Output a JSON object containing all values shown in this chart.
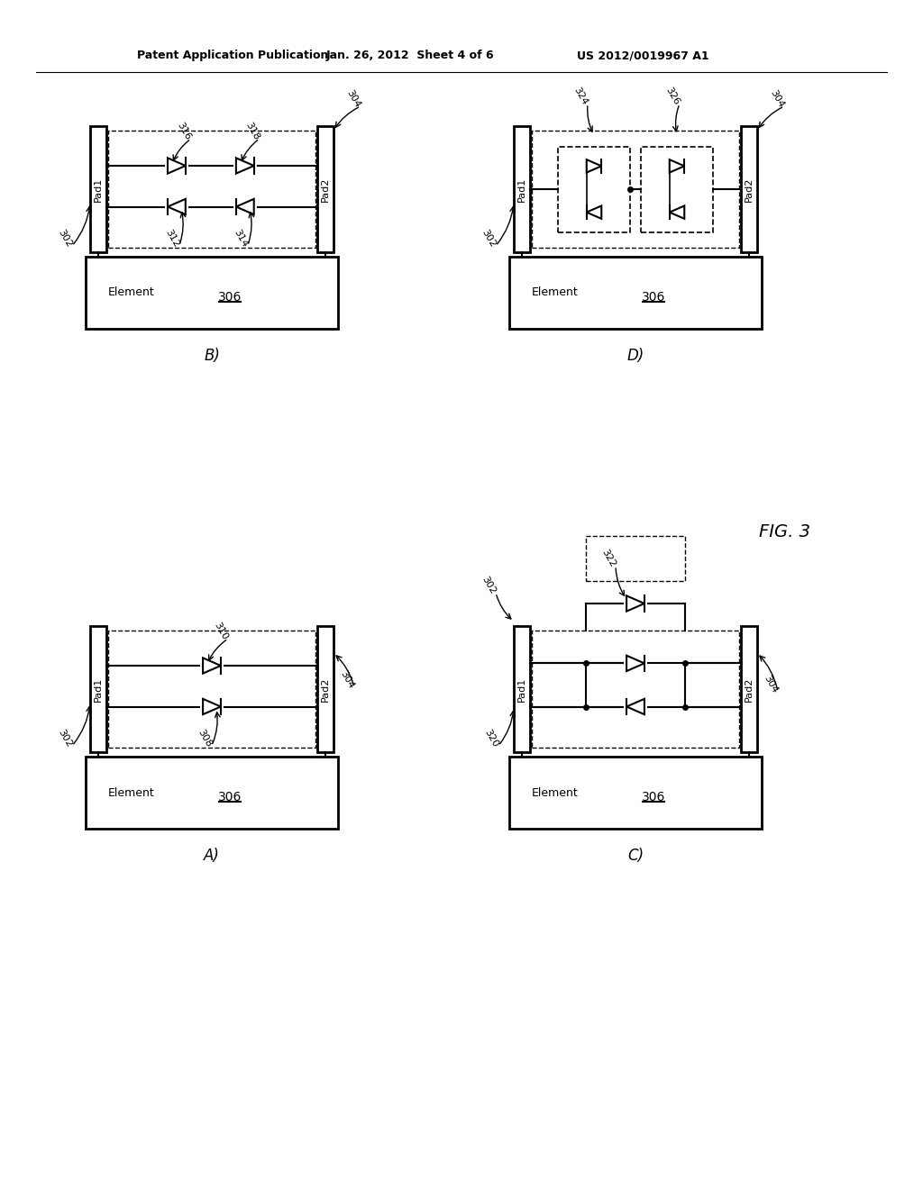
{
  "bg_color": "#ffffff",
  "line_color": "#000000",
  "header_left": "Patent Application Publication",
  "header_mid": "Jan. 26, 2012  Sheet 4 of 6",
  "header_right": "US 2012/0019967 A1",
  "fig_label": "FIG. 3"
}
